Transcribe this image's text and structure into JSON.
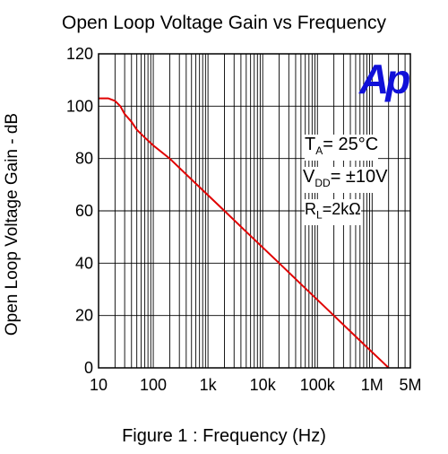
{
  "chart_data": {
    "type": "line",
    "title": "Open Loop Voltage Gain vs Frequency",
    "xlabel": "Figure 1 : Frequency  (Hz)",
    "ylabel": "Open Loop Voltage Gain - dB",
    "x_scale": "log",
    "xlim": [
      10,
      5000000
    ],
    "ylim": [
      0,
      120
    ],
    "x_ticks": [
      {
        "value": 10,
        "label": "10"
      },
      {
        "value": 100,
        "label": "100"
      },
      {
        "value": 1000,
        "label": "1k"
      },
      {
        "value": 10000,
        "label": "10k"
      },
      {
        "value": 100000,
        "label": "100k"
      },
      {
        "value": 1000000,
        "label": "1M"
      },
      {
        "value": 5000000,
        "label": "5M"
      }
    ],
    "y_ticks": [
      0,
      20,
      40,
      60,
      80,
      100,
      120
    ],
    "grid": true,
    "line_color": "#e00000",
    "series": [
      {
        "x": [
          10,
          15,
          20,
          25,
          30,
          40,
          50,
          70,
          100,
          200,
          500,
          1000,
          2000,
          5000,
          10000,
          20000,
          50000,
          100000,
          200000,
          500000,
          1000000,
          1500000,
          2000000
        ],
        "y": [
          103,
          103,
          102,
          100,
          97,
          94,
          91,
          88,
          85,
          80,
          72,
          66,
          60,
          52,
          46,
          40,
          32,
          26,
          20,
          12,
          6,
          2.5,
          0
        ]
      }
    ],
    "annotations": {
      "ta_main": "T",
      "ta_sub": "A",
      "ta_rest": "= 25°C",
      "vdd_main": "V",
      "vdd_sub": "DD",
      "vdd_rest": "= ±10V",
      "rl_main": "R",
      "rl_sub": "L",
      "rl_rest": "=2kΩ"
    },
    "logo_text": "Ap"
  }
}
